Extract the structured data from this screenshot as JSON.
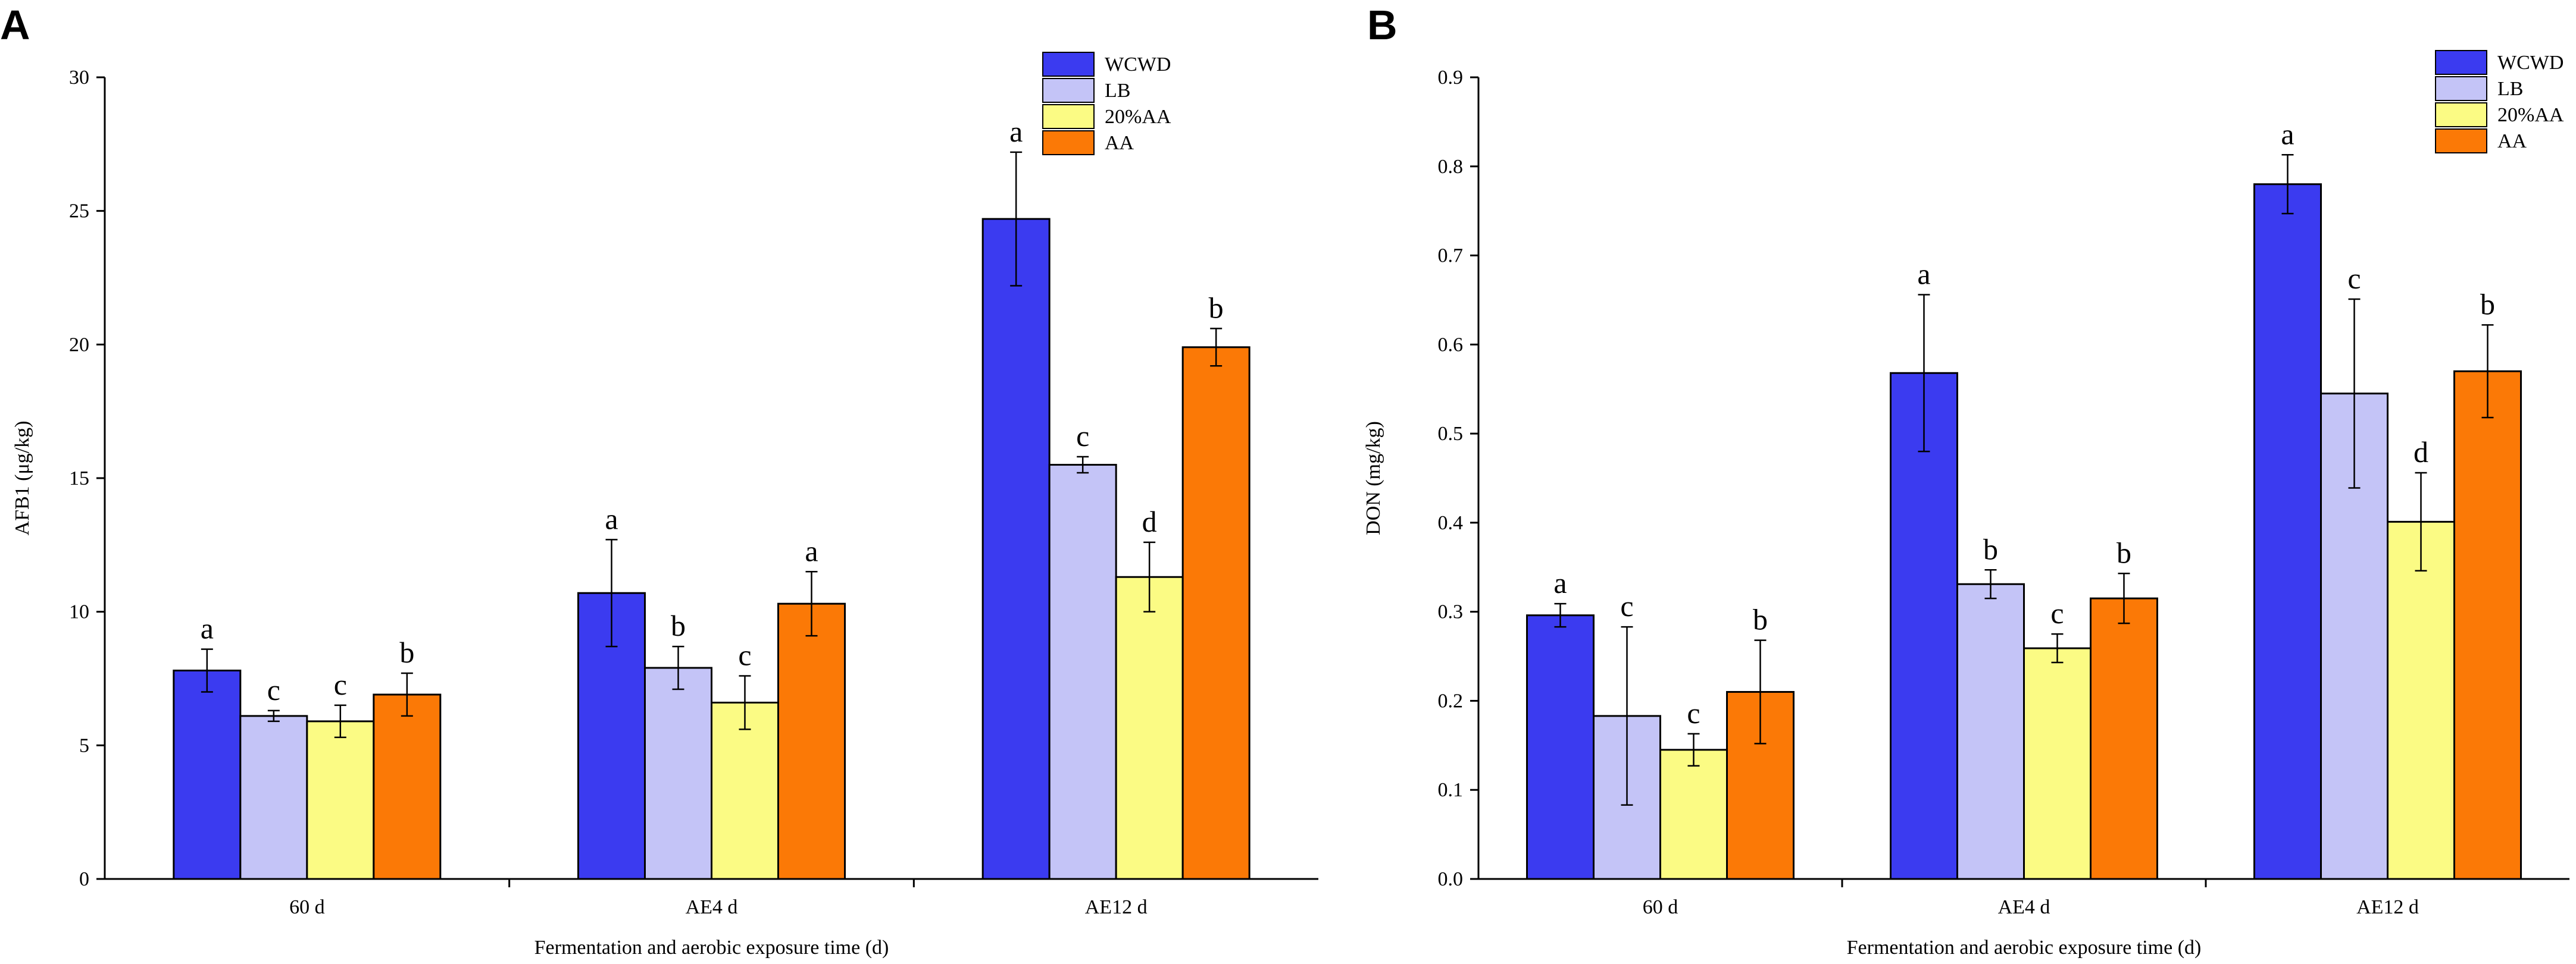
{
  "chart_data": [
    {
      "panel": "A",
      "type": "bar",
      "title": "",
      "xlabel": "Fermentation and aerobic exposure time (d)",
      "ylabel": "AFB1 (μg/kg)",
      "ylim": [
        0,
        30
      ],
      "yticks": [
        "0",
        "5",
        "10",
        "15",
        "20",
        "25",
        "30"
      ],
      "categories": [
        "60 d",
        "AE4 d",
        "AE12 d"
      ],
      "series": [
        {
          "name": "WCWD",
          "color": "#3b3bf0",
          "values": [
            7.8,
            10.7,
            24.7
          ],
          "errors": [
            0.8,
            2.0,
            2.5
          ],
          "labels": [
            "a",
            "a",
            "a"
          ]
        },
        {
          "name": "LB",
          "color": "#c4c4f7",
          "values": [
            6.1,
            7.9,
            15.5
          ],
          "errors": [
            0.2,
            0.8,
            0.3
          ],
          "labels": [
            "c",
            "b",
            "c"
          ]
        },
        {
          "name": "20%AA",
          "color": "#fbfb84",
          "values": [
            5.9,
            6.6,
            11.3
          ],
          "errors": [
            0.6,
            1.0,
            1.3
          ],
          "labels": [
            "c",
            "c",
            "d"
          ]
        },
        {
          "name": "AA",
          "color": "#fb7906",
          "values": [
            6.9,
            10.3,
            19.9
          ],
          "errors": [
            0.8,
            1.2,
            0.7
          ],
          "labels": [
            "b",
            "a",
            "b"
          ]
        }
      ]
    },
    {
      "panel": "B",
      "type": "bar",
      "title": "",
      "xlabel": "Fermentation and aerobic exposure time (d)",
      "ylabel": "DON (mg/kg)",
      "ylim": [
        0,
        0.9
      ],
      "yticks": [
        "0.0",
        "0.1",
        "0.2",
        "0.3",
        "0.4",
        "0.5",
        "0.6",
        "0.7",
        "0.8",
        "0.9"
      ],
      "categories": [
        "60 d",
        "AE4 d",
        "AE12 d"
      ],
      "series": [
        {
          "name": "WCWD",
          "color": "#3b3bf0",
          "values": [
            0.296,
            0.568,
            0.78
          ],
          "errors": [
            0.013,
            0.088,
            0.033
          ],
          "labels": [
            "a",
            "a",
            "a"
          ]
        },
        {
          "name": "LB",
          "color": "#c4c4f7",
          "values": [
            0.183,
            0.331,
            0.545
          ],
          "errors": [
            0.1,
            0.016,
            0.106
          ],
          "labels": [
            "c",
            "b",
            "c"
          ]
        },
        {
          "name": "20%AA",
          "color": "#fbfb84",
          "values": [
            0.145,
            0.259,
            0.401
          ],
          "errors": [
            0.018,
            0.016,
            0.055
          ],
          "labels": [
            "c",
            "c",
            "d"
          ]
        },
        {
          "name": "AA",
          "color": "#fb7906",
          "values": [
            0.21,
            0.315,
            0.57
          ],
          "errors": [
            0.058,
            0.028,
            0.052
          ],
          "labels": [
            "b",
            "b",
            "b"
          ]
        }
      ]
    }
  ]
}
